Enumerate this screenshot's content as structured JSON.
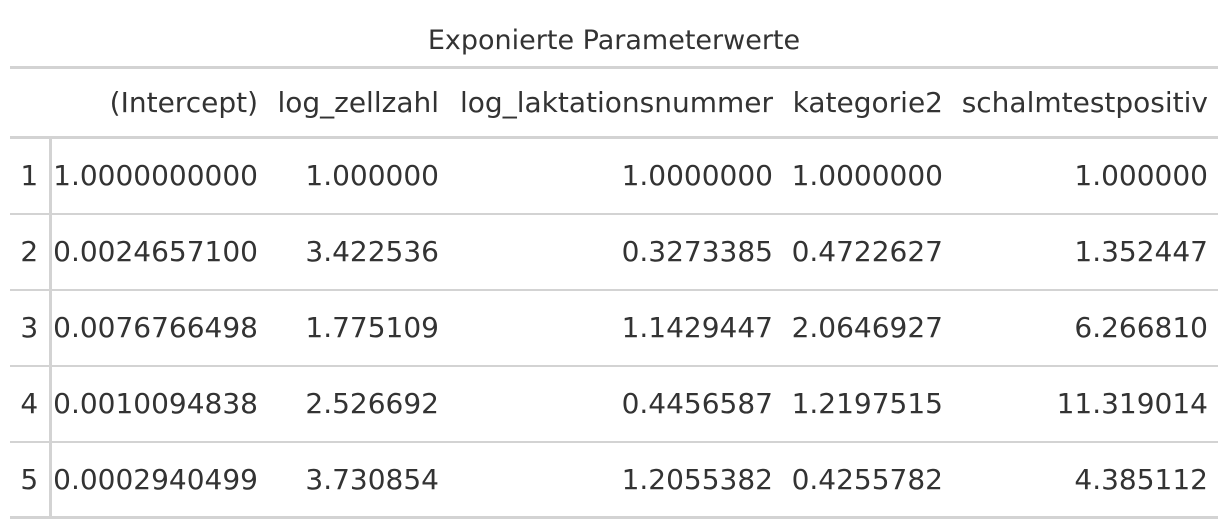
{
  "table": {
    "title": "Exponierte Parameterwerte",
    "columns": [
      "",
      "(Intercept)",
      "log_zellzahl",
      "log_laktationsnummer",
      "kategorie2",
      "schalmtestpositiv"
    ],
    "rows": [
      [
        "1",
        "1.0000000000",
        "1.000000",
        "1.0000000",
        "1.0000000",
        "1.000000"
      ],
      [
        "2",
        "0.0024657100",
        "3.422536",
        "0.3273385",
        "0.4722627",
        "1.352447"
      ],
      [
        "3",
        "0.0076766498",
        "1.775109",
        "1.1429447",
        "2.0646927",
        "6.266810"
      ],
      [
        "4",
        "0.0010094838",
        "2.526692",
        "0.4456587",
        "1.2197515",
        "11.319014"
      ],
      [
        "5",
        "0.0002940499",
        "3.730854",
        "1.2055382",
        "0.4255782",
        "4.385112"
      ]
    ]
  }
}
